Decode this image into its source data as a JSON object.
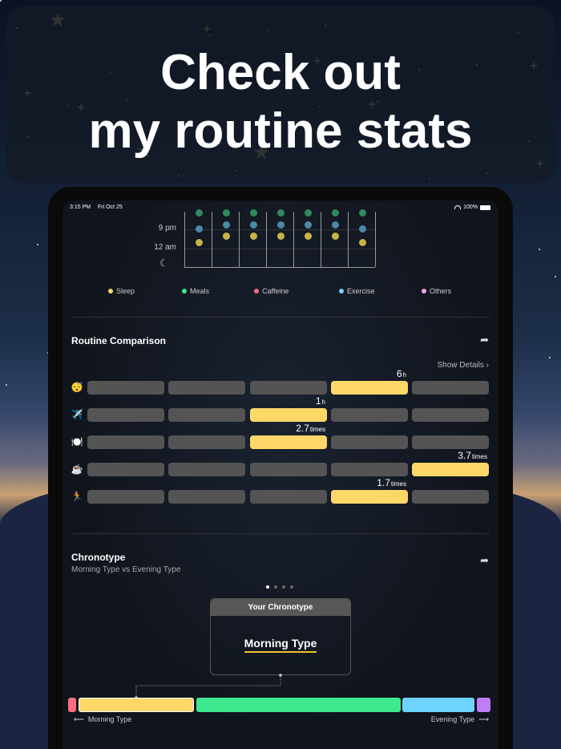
{
  "banner": {
    "title_line1": "Check out",
    "title_line2": "my routine stats"
  },
  "status": {
    "time": "3:15 PM",
    "date": "Fri Oct 25",
    "battery": "100%"
  },
  "timeline": {
    "y_labels": [
      "9 pm",
      "12 am"
    ],
    "moon_icon": "moon-icon",
    "columns": [
      [
        "meals",
        "exercise",
        "sleep-low"
      ],
      [
        "meals",
        "exercise",
        "sleep"
      ],
      [
        "meals",
        "exercise",
        "sleep"
      ],
      [
        "meals",
        "exercise",
        "sleep"
      ],
      [
        "meals",
        "exercise",
        "sleep"
      ],
      [
        "meals",
        "exercise",
        "sleep"
      ],
      [
        "meals",
        "exercise",
        "sleep-low"
      ]
    ],
    "colors": {
      "sleep": "#c9b24a",
      "meals": "#2f8a5c",
      "exercise": "#4a8aa6"
    }
  },
  "legend": [
    {
      "label": "Sleep",
      "color": "#fdd869"
    },
    {
      "label": "Meals",
      "color": "#3ee88f"
    },
    {
      "label": "Caffeine",
      "color": "#ff6b81"
    },
    {
      "label": "Exercise",
      "color": "#6fd3ff"
    },
    {
      "label": "Others",
      "color": "#f0a4f0"
    }
  ],
  "comparison": {
    "title": "Routine Comparison",
    "show_details": "Show Details",
    "rows": [
      {
        "icon": "😴",
        "name": "sleep",
        "active": 3,
        "value": "6",
        "unit": "h"
      },
      {
        "icon": "✈️",
        "name": "travel",
        "active": 2,
        "value": "1",
        "unit": "h"
      },
      {
        "icon": "🍽️",
        "name": "meals",
        "active": 2,
        "value": "2.7",
        "unit": "times"
      },
      {
        "icon": "☕",
        "name": "caffeine",
        "active": 4,
        "value": "3.7",
        "unit": "times"
      },
      {
        "icon": "🏃",
        "name": "exercise",
        "active": 3,
        "value": "1.7",
        "unit": "times"
      }
    ]
  },
  "chronotype": {
    "title": "Chronotype",
    "subtitle": "Morning Type vs Evening Type",
    "page_count": 4,
    "active_page": 0,
    "card_title": "Your Chronotype",
    "result": "Morning Type",
    "axis_left": "Morning Type",
    "axis_right": "Evening Type",
    "segments": [
      {
        "color": "#ff6b81"
      },
      {
        "color": "#fdd869"
      },
      {
        "color": "#3ee88f"
      },
      {
        "color": "#6fd3ff"
      },
      {
        "color": "#c07cf5"
      }
    ]
  }
}
